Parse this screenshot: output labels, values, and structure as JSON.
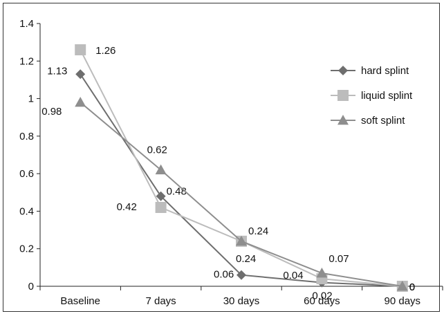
{
  "chart_data": {
    "type": "line",
    "categories": [
      "Baseline",
      "7 days",
      "30 days",
      "60 days",
      "90 days"
    ],
    "ylim": [
      0,
      1.4
    ],
    "yticks": [
      "0",
      "0.2",
      "0.4",
      "0.6",
      "0.8",
      "1",
      "1.2",
      "1.4"
    ],
    "grid": false,
    "legend_position": "right",
    "series": [
      {
        "name": "hard splint",
        "values": [
          1.13,
          0.48,
          0.06,
          0.02,
          0
        ],
        "labels": [
          "1.13",
          "0.48",
          "0.06",
          "0.02",
          "0"
        ],
        "color": "#6e6e6e",
        "marker": "diamond"
      },
      {
        "name": "liquid splint",
        "values": [
          1.26,
          0.42,
          0.24,
          0.04,
          0
        ],
        "labels": [
          "1.26",
          "0.42",
          "0.24",
          "0.04",
          "0"
        ],
        "color": "#bcbcbc",
        "marker": "square"
      },
      {
        "name": "soft splint",
        "values": [
          0.98,
          0.62,
          0.24,
          0.07,
          0
        ],
        "labels": [
          "0.98",
          "0.62",
          "0.24",
          "0.07",
          "0"
        ],
        "color": "#8e8e8e",
        "marker": "triangle"
      }
    ]
  }
}
